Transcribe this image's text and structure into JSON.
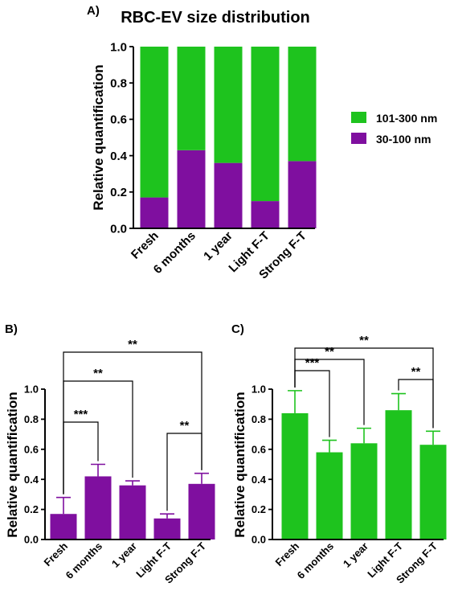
{
  "chart_data": [
    {
      "panel": "A)",
      "type": "bar",
      "stacked": true,
      "title": "RBC-EV size distribution",
      "ylabel": "Relative quantification",
      "ylim": [
        0,
        1.0
      ],
      "yticks": [
        "0.0",
        "0.2",
        "0.4",
        "0.6",
        "0.8",
        "1.0"
      ],
      "categories": [
        "Fresh",
        "6 months",
        "1 year",
        "Light F-T",
        "Strong F-T"
      ],
      "legend_position": "right",
      "series": [
        {
          "name": "30-100 nm",
          "color": "#7f0f9f",
          "values": [
            0.17,
            0.43,
            0.36,
            0.15,
            0.37
          ]
        },
        {
          "name": "101-300 nm",
          "color": "#1ec31e",
          "values": [
            0.83,
            0.57,
            0.64,
            0.85,
            0.63
          ]
        }
      ]
    },
    {
      "panel": "B)",
      "type": "bar",
      "ylabel": "Relative quantification",
      "ylim": [
        0,
        1.0
      ],
      "yticks": [
        "0.0",
        "0.2",
        "0.4",
        "0.6",
        "0.8",
        "1.0"
      ],
      "categories": [
        "Fresh",
        "6 months",
        "1 year",
        "Light F-T",
        "Strong F-T"
      ],
      "color": "#7f0f9f",
      "values": [
        0.17,
        0.42,
        0.36,
        0.14,
        0.37
      ],
      "errors": [
        0.11,
        0.08,
        0.03,
        0.03,
        0.07
      ],
      "significance": [
        {
          "from": 0,
          "to": 1,
          "label": "***"
        },
        {
          "from": 0,
          "to": 2,
          "label": "**"
        },
        {
          "from": 0,
          "to": 4,
          "label": "**"
        },
        {
          "from": 3,
          "to": 4,
          "label": "**"
        }
      ]
    },
    {
      "panel": "C)",
      "type": "bar",
      "ylabel": "Relative quantification",
      "ylim": [
        0,
        1.0
      ],
      "yticks": [
        "0.0",
        "0.2",
        "0.4",
        "0.6",
        "0.8",
        "1.0"
      ],
      "categories": [
        "Fresh",
        "6 months",
        "1 year",
        "Light F-T",
        "Strong F-T"
      ],
      "color": "#1ec31e",
      "values": [
        0.84,
        0.58,
        0.64,
        0.86,
        0.63
      ],
      "errors": [
        0.15,
        0.08,
        0.1,
        0.11,
        0.09
      ],
      "significance": [
        {
          "from": 0,
          "to": 1,
          "label": "***"
        },
        {
          "from": 0,
          "to": 2,
          "label": "**"
        },
        {
          "from": 0,
          "to": 4,
          "label": "**"
        },
        {
          "from": 3,
          "to": 4,
          "label": "**"
        }
      ]
    }
  ]
}
